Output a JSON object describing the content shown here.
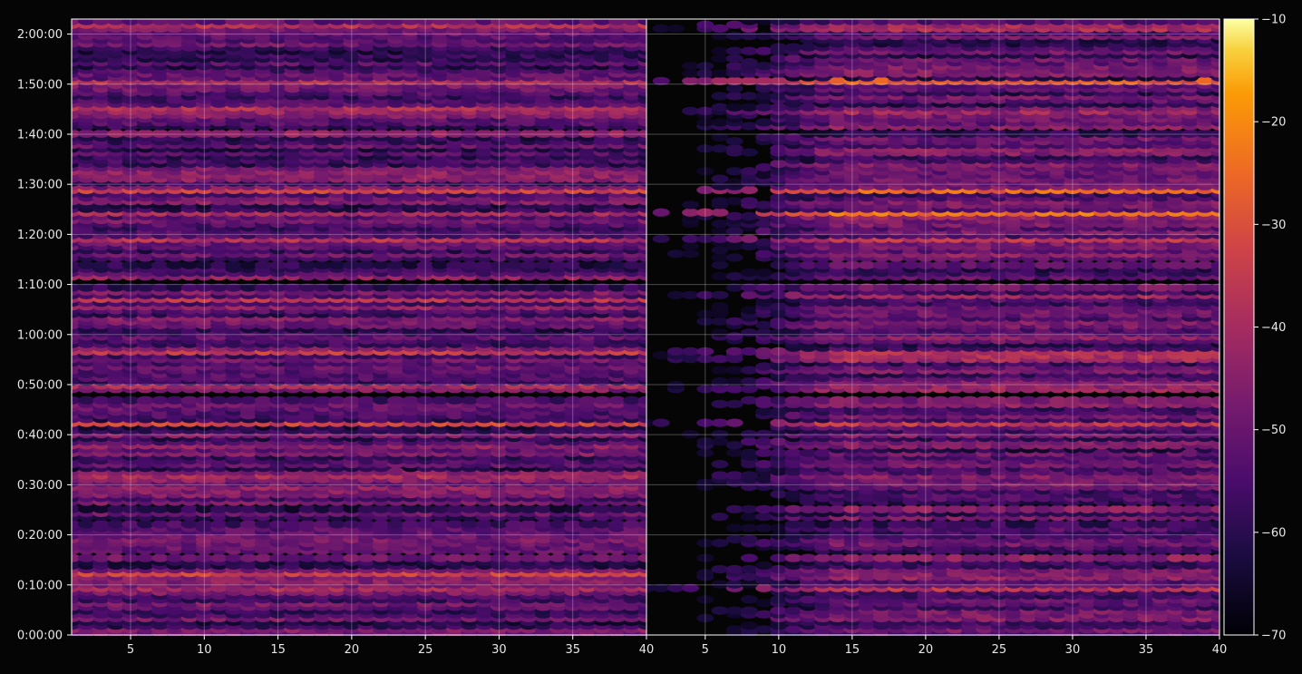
{
  "chart_data": {
    "type": "heatmap",
    "title": "",
    "xlabel": "",
    "ylabel": "",
    "panels": [
      {
        "name": "",
        "x_range": [
          1,
          40
        ],
        "x_ticks": [
          5,
          10,
          15,
          20,
          25,
          30,
          35,
          40
        ]
      },
      {
        "name": "",
        "x_range": [
          1,
          40
        ],
        "x_ticks": [
          5,
          10,
          15,
          20,
          25,
          30,
          35,
          40
        ]
      }
    ],
    "y_range_seconds": [
      0,
      7380
    ],
    "y_ticks": [
      {
        "seconds": 0,
        "label": "0:00:00"
      },
      {
        "seconds": 600,
        "label": "0:10:00"
      },
      {
        "seconds": 1200,
        "label": "0:20:00"
      },
      {
        "seconds": 1800,
        "label": "0:30:00"
      },
      {
        "seconds": 2400,
        "label": "0:40:00"
      },
      {
        "seconds": 3000,
        "label": "0:50:00"
      },
      {
        "seconds": 3600,
        "label": "1:00:00"
      },
      {
        "seconds": 4200,
        "label": "1:10:00"
      },
      {
        "seconds": 4800,
        "label": "1:20:00"
      },
      {
        "seconds": 5400,
        "label": "1:30:00"
      },
      {
        "seconds": 6000,
        "label": "1:40:00"
      },
      {
        "seconds": 6600,
        "label": "1:50:00"
      },
      {
        "seconds": 7200,
        "label": "2:00:00"
      }
    ],
    "colorbar": {
      "colormap": "inferno",
      "range": [
        -70,
        -10
      ],
      "ticks": [
        "−70",
        "−60",
        "−50",
        "−40",
        "−30",
        "−20",
        "−10"
      ]
    },
    "bright_bands_seconds": [
      6630,
      4750,
      5340,
      5070,
      2550,
      2980,
      1930,
      3380,
      560,
      750,
      4050,
      6300,
      2930,
      3300,
      7290
    ],
    "grid": true,
    "colors": {
      "background": "#050505",
      "frame": "#ffffff",
      "grid": "#ffffff"
    }
  }
}
